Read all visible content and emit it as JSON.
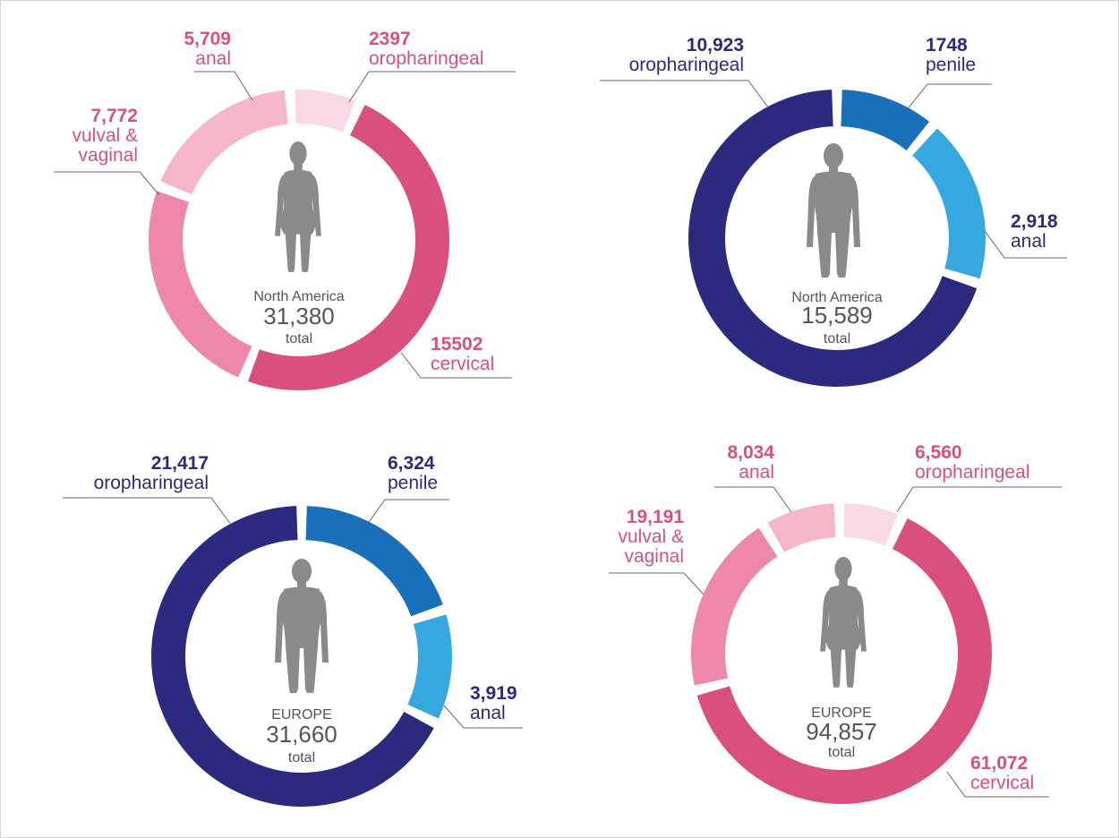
{
  "chart_data": [
    {
      "type": "pie",
      "variant": "donut",
      "gender": "female",
      "region": "North America",
      "total": "31,380",
      "total_label": "total",
      "slices": [
        {
          "name": "cervical",
          "value_label": "15502",
          "value": 15502,
          "color": "#d9507f"
        },
        {
          "name": "vulval & vaginal",
          "label_lines": [
            "vulval &",
            "vaginal"
          ],
          "value_label": "7,772",
          "value": 7772,
          "color": "#ee88aa"
        },
        {
          "name": "anal",
          "value_label": "5,709",
          "value": 5709,
          "color": "#f5b7c7"
        },
        {
          "name": "oropharingeal",
          "value_label": "2397",
          "value": 2397,
          "color": "#f9d9e2"
        }
      ]
    },
    {
      "type": "pie",
      "variant": "donut",
      "gender": "male",
      "region": "North America",
      "total": "15,589",
      "total_label": "total",
      "slices": [
        {
          "name": "penile",
          "value_label": "1748",
          "value": 1748,
          "color": "#1a6fba"
        },
        {
          "name": "anal",
          "value_label": "2,918",
          "value": 2918,
          "color": "#35a8e0"
        },
        {
          "name": "oropharingeal",
          "value_label": "10,923",
          "value": 10923,
          "color": "#2b2a7e"
        }
      ]
    },
    {
      "type": "pie",
      "variant": "donut",
      "gender": "male",
      "region": "EUROPE",
      "total": "31,660",
      "total_label": "total",
      "slices": [
        {
          "name": "penile",
          "value_label": "6,324",
          "value": 6324,
          "color": "#1a6fba"
        },
        {
          "name": "anal",
          "value_label": "3,919",
          "value": 3919,
          "color": "#35a8e0"
        },
        {
          "name": "oropharingeal",
          "value_label": "21,417",
          "value": 21417,
          "color": "#2b2a7e"
        }
      ]
    },
    {
      "type": "pie",
      "variant": "donut",
      "gender": "female",
      "region": "EUROPE",
      "total": "94,857",
      "total_label": "total",
      "slices": [
        {
          "name": "cervical",
          "value_label": "61,072",
          "value": 61072,
          "color": "#d9507f"
        },
        {
          "name": "vulval & vaginal",
          "label_lines": [
            "vulval &",
            "vaginal"
          ],
          "value_label": "19,191",
          "value": 19191,
          "color": "#ee88aa"
        },
        {
          "name": "anal",
          "value_label": "8,034",
          "value": 8034,
          "color": "#f5b7c7"
        },
        {
          "name": "oropharingeal",
          "value_label": "6,560",
          "value": 6560,
          "color": "#f9d9e2"
        }
      ]
    }
  ],
  "colors": {
    "female_text": "#d9507f",
    "male_text": "#2b2a7e",
    "figure": "#8a8a8a",
    "leader": "#666666"
  }
}
